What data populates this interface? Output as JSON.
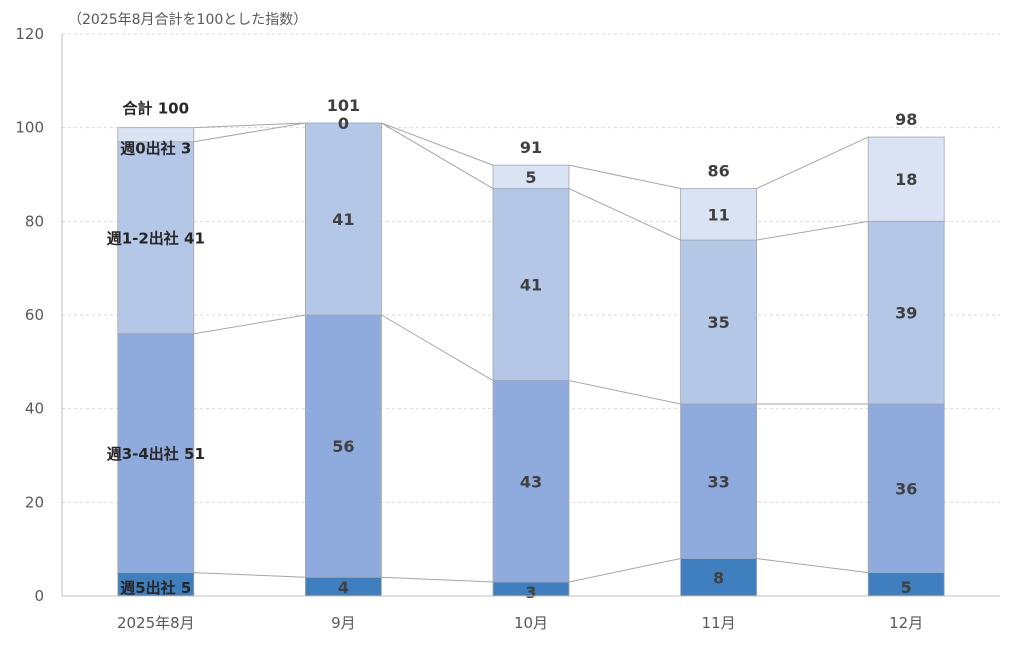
{
  "chart_data": {
    "type": "bar",
    "stacked": true,
    "subtitle": "（2025年8月合計を100とした指数）",
    "categories": [
      "2025年8月",
      "9月",
      "10月",
      "11月",
      "12月"
    ],
    "ylim": [
      0,
      120
    ],
    "yticks": [
      0,
      20,
      40,
      60,
      80,
      100,
      120
    ],
    "grid": true,
    "series": [
      {
        "name": "週5出社",
        "color": "#3f7fbf",
        "values": [
          5,
          4,
          3,
          8,
          5
        ]
      },
      {
        "name": "週3-4出社",
        "color": "#8faadc",
        "values": [
          51,
          56,
          43,
          33,
          36
        ]
      },
      {
        "name": "週1-2出社",
        "color": "#b4c7e7",
        "values": [
          41,
          41,
          41,
          35,
          39
        ]
      },
      {
        "name": "週0出社",
        "color": "#dae3f3",
        "values": [
          3,
          0,
          5,
          11,
          18
        ]
      }
    ],
    "totals": [
      100,
      101,
      91,
      86,
      98
    ],
    "total_label_name": "合計",
    "series_label_names": [
      "週5出社 5",
      "週3-4出社 51",
      "週1-2出社 41",
      "週0出社 3",
      "合計 100"
    ]
  }
}
